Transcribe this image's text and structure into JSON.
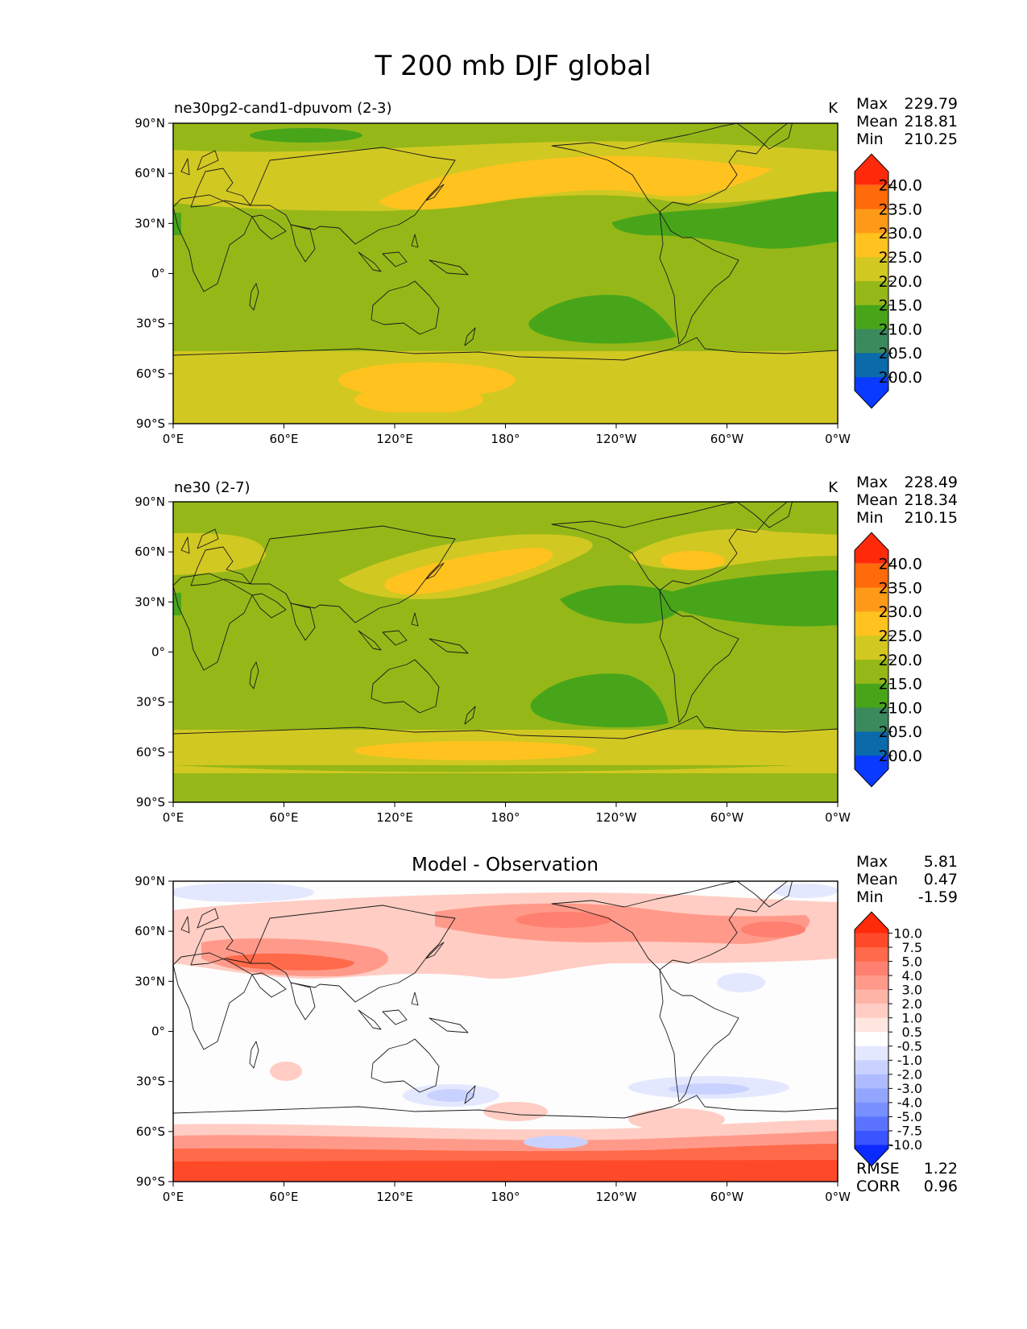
{
  "figure": {
    "title": "T 200 mb DJF global",
    "lon_ticks": [
      "0°E",
      "60°E",
      "120°E",
      "180°",
      "120°W",
      "60°W",
      "0°W"
    ],
    "lat_ticks": [
      "90°N",
      "60°N",
      "30°N",
      "0°",
      "30°S",
      "60°S",
      "90°S"
    ]
  },
  "panels": [
    {
      "left_title": "ne30pg2-cand1-dpuvom (2-3)",
      "center_title": "",
      "units": "K",
      "stats": [
        {
          "label": "Max",
          "value": "229.79"
        },
        {
          "label": "Mean",
          "value": "218.81"
        },
        {
          "label": "Min",
          "value": "210.25"
        }
      ],
      "colorbar": {
        "levels": [
          "240.0",
          "235.0",
          "230.0",
          "225.0",
          "220.0",
          "215.0",
          "210.0",
          "205.0",
          "200.0"
        ],
        "colors": [
          "#ff2a0a",
          "#ff6a0a",
          "#ff9a18",
          "#ffc21e",
          "#d2c822",
          "#95b818",
          "#48a51a",
          "#3a8a5e",
          "#0a6aaa",
          "#0a3aff"
        ]
      },
      "extra_stats": []
    },
    {
      "left_title": "ne30 (2-7)",
      "center_title": "",
      "units": "K",
      "stats": [
        {
          "label": "Max",
          "value": "228.49"
        },
        {
          "label": "Mean",
          "value": "218.34"
        },
        {
          "label": "Min",
          "value": "210.15"
        }
      ],
      "colorbar": {
        "levels": [
          "240.0",
          "235.0",
          "230.0",
          "225.0",
          "220.0",
          "215.0",
          "210.0",
          "205.0",
          "200.0"
        ],
        "colors": [
          "#ff2a0a",
          "#ff6a0a",
          "#ff9a18",
          "#ffc21e",
          "#d2c822",
          "#95b818",
          "#48a51a",
          "#3a8a5e",
          "#0a6aaa",
          "#0a3aff"
        ]
      },
      "extra_stats": []
    },
    {
      "left_title": "",
      "center_title": "Model - Observation",
      "units": "",
      "stats": [
        {
          "label": "Max",
          "value": "5.81"
        },
        {
          "label": "Mean",
          "value": "0.47"
        },
        {
          "label": "Min",
          "value": "-1.59"
        }
      ],
      "colorbar": {
        "levels": [
          "10.0",
          "7.5",
          "5.0",
          "4.0",
          "3.0",
          "2.0",
          "1.0",
          "0.5",
          "-0.5",
          "-1.0",
          "-2.0",
          "-3.0",
          "-4.0",
          "-5.0",
          "-7.5",
          "-10.0"
        ],
        "colors": [
          "#ff2a0a",
          "#ff4a2a",
          "#ff6a4a",
          "#ff8070",
          "#ff9a8a",
          "#ffb4a8",
          "#ffcdc4",
          "#ffe6e0",
          "#ffffff",
          "#e4e8ff",
          "#c9d2ff",
          "#aebcff",
          "#93a6ff",
          "#7890ff",
          "#5a72ff",
          "#3a54ff",
          "#0a2aff"
        ]
      },
      "extra_stats": [
        {
          "label": "RMSE",
          "value": "1.22"
        },
        {
          "label": "CORR",
          "value": "0.96"
        }
      ]
    }
  ]
}
